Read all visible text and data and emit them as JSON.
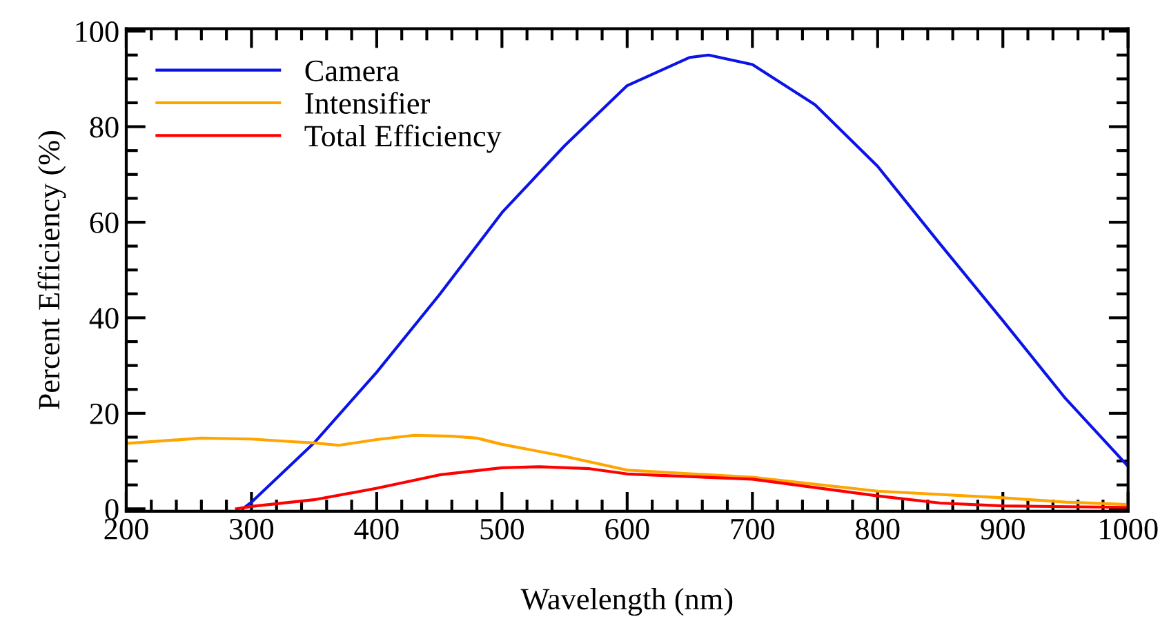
{
  "chart_data": {
    "type": "line",
    "xlabel": "Wavelength (nm)",
    "ylabel": "Percent Efficiency (%)",
    "xlim": [
      200,
      1000
    ],
    "ylim": [
      -0.5,
      100.5
    ],
    "xticks": [
      200,
      300,
      400,
      500,
      600,
      700,
      800,
      900,
      1000
    ],
    "yticks": [
      0,
      20,
      40,
      60,
      80,
      100
    ],
    "grid": false,
    "legend": "top left",
    "line_style": "solid",
    "marker": "none",
    "series": [
      {
        "name": "Camera",
        "color": "#0a14e6",
        "x": [
          293,
          300,
          350,
          400,
          450,
          500,
          550,
          600,
          650,
          665,
          700,
          750,
          800,
          850,
          900,
          950,
          1000
        ],
        "values": [
          0,
          1.4,
          13.8,
          28.6,
          44.8,
          62,
          76,
          88.6,
          94.5,
          95,
          93,
          84.6,
          71.7,
          55.4,
          39.4,
          23.1,
          8.9
        ]
      },
      {
        "name": "Intensifier",
        "color": "#ffa500",
        "x": [
          200,
          260,
          300,
          330,
          350,
          370,
          400,
          430,
          460,
          480,
          500,
          550,
          600,
          700,
          800,
          900,
          950,
          1000
        ],
        "values": [
          13.7,
          14.8,
          14.6,
          14.1,
          13.8,
          13.3,
          14.5,
          15.4,
          15.2,
          14.8,
          13.5,
          11,
          8.1,
          6.6,
          3.7,
          2.3,
          1.4,
          0.9
        ]
      },
      {
        "name": "Total Efficiency",
        "color": "#ff0000",
        "x": [
          288,
          300,
          350,
          400,
          450,
          500,
          530,
          570,
          600,
          700,
          800,
          850,
          900,
          1000
        ],
        "values": [
          0,
          0.5,
          1.9,
          4.3,
          7.1,
          8.6,
          8.8,
          8.4,
          7.3,
          6.2,
          2.7,
          1.2,
          0.6,
          0.3
        ]
      }
    ]
  }
}
